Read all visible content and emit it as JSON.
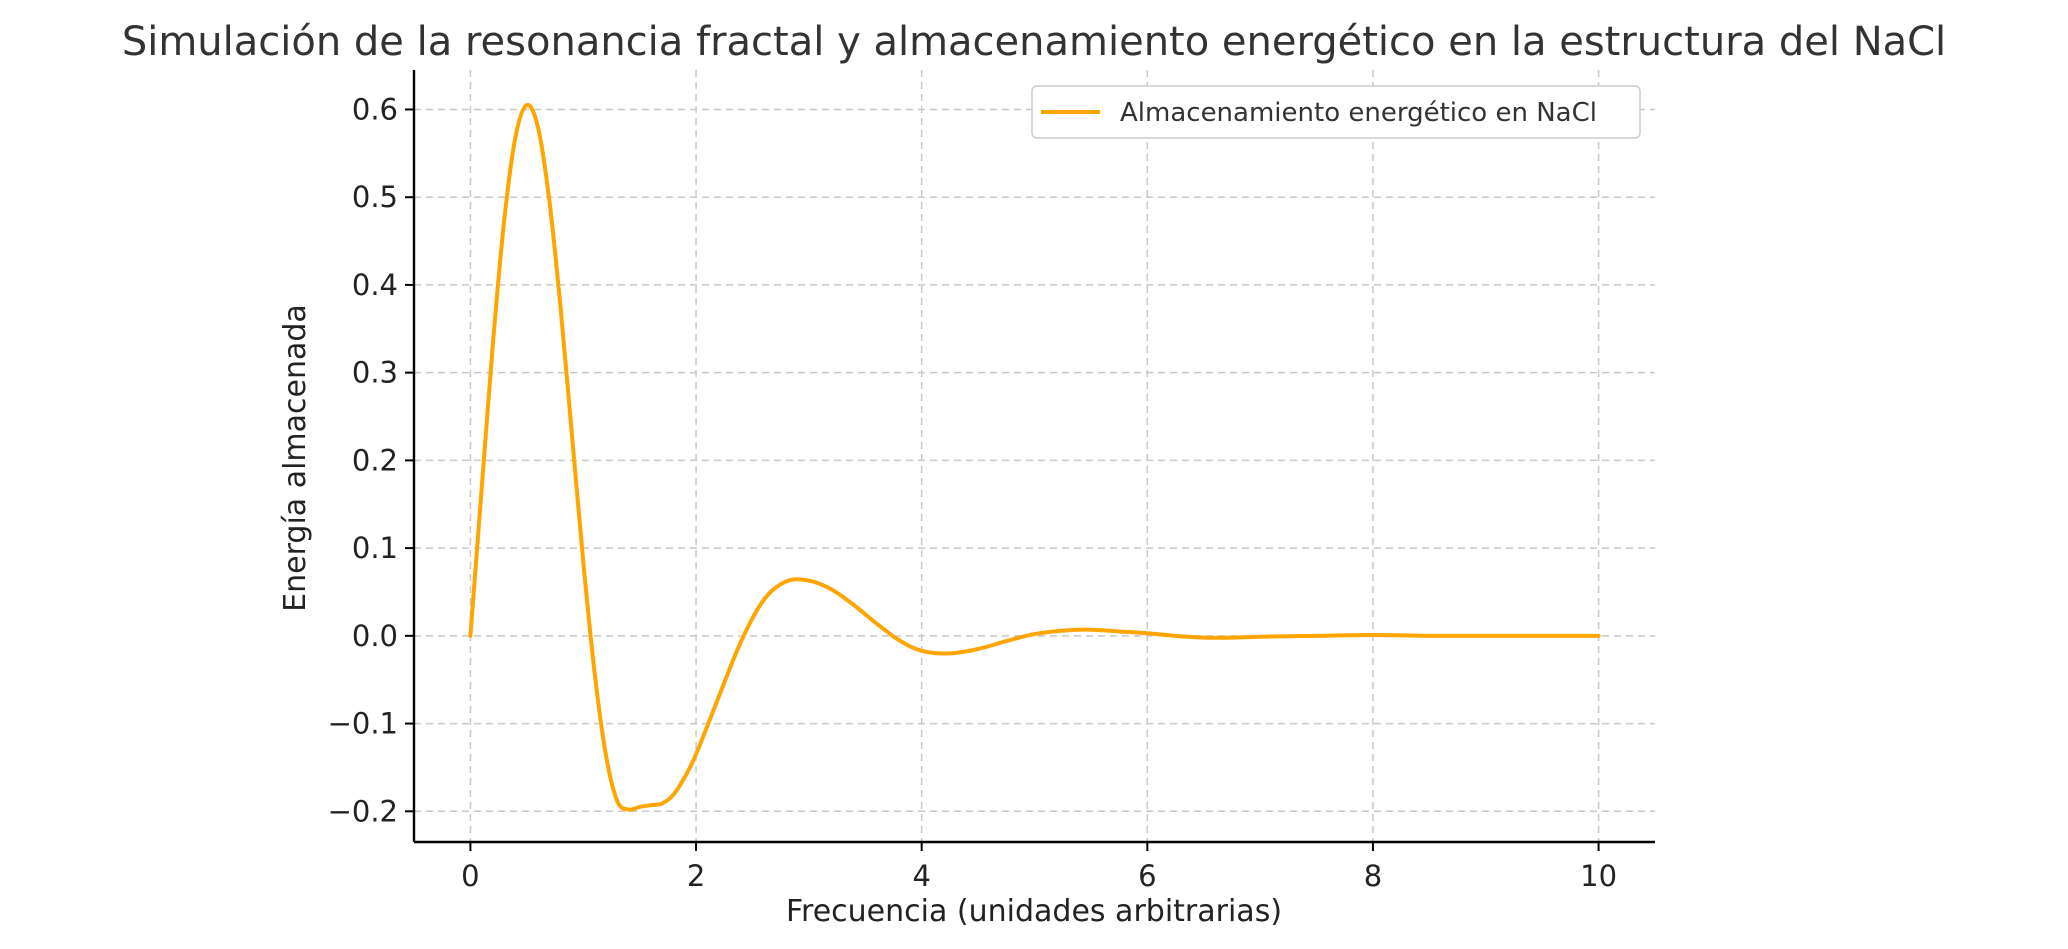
{
  "chart_data": {
    "type": "line",
    "title": "Simulación de la resonancia fractal y almacenamiento energético en la estructura del NaCl",
    "xlabel": "Frecuencia (unidades arbitrarias)",
    "ylabel": "Energía almacenada",
    "xlim": [
      -0.5,
      10.5
    ],
    "ylim": [
      -0.235,
      0.645
    ],
    "xticks": [
      0,
      2,
      4,
      6,
      8,
      10
    ],
    "yticks": [
      -0.2,
      -0.1,
      0.0,
      0.1,
      0.2,
      0.3,
      0.4,
      0.5,
      0.6
    ],
    "xtick_labels": [
      "0",
      "2",
      "4",
      "6",
      "8",
      "10"
    ],
    "ytick_labels": [
      "−0.2",
      "−0.1",
      "0.0",
      "0.1",
      "0.2",
      "0.3",
      "0.4",
      "0.5",
      "0.6"
    ],
    "grid": true,
    "legend_position": "top-right",
    "series": [
      {
        "name": "Almacenamiento energético en NaCl",
        "color": "#FFA500",
        "x": [
          0,
          0.1,
          0.2,
          0.3,
          0.4,
          0.5,
          0.6,
          0.7,
          0.8,
          0.9,
          1.0,
          1.1,
          1.2,
          1.3,
          1.4,
          1.5,
          1.6,
          1.7,
          1.8,
          1.9,
          2.0,
          2.2,
          2.4,
          2.6,
          2.8,
          3.0,
          3.2,
          3.4,
          3.6,
          3.8,
          4.0,
          4.25,
          4.5,
          4.75,
          5.0,
          5.25,
          5.5,
          5.75,
          6.0,
          6.25,
          6.5,
          6.75,
          7.0,
          7.5,
          8.0,
          8.5,
          9.0,
          9.5,
          10.0
        ],
        "y": [
          0.0,
          0.168,
          0.334,
          0.474,
          0.569,
          0.605,
          0.579,
          0.496,
          0.373,
          0.229,
          0.085,
          -0.041,
          -0.135,
          -0.188,
          -0.198,
          -0.195,
          -0.193,
          -0.191,
          -0.181,
          -0.161,
          -0.135,
          -0.07,
          -0.006,
          0.041,
          0.062,
          0.063,
          0.053,
          0.035,
          0.014,
          -0.005,
          -0.017,
          -0.02,
          -0.015,
          -0.006,
          0.002,
          0.006,
          0.007,
          0.005,
          0.003,
          0.0,
          -0.002,
          -0.002,
          -0.001,
          0.0,
          0.001,
          0.0,
          0.0,
          0.0,
          0.0
        ]
      }
    ]
  }
}
